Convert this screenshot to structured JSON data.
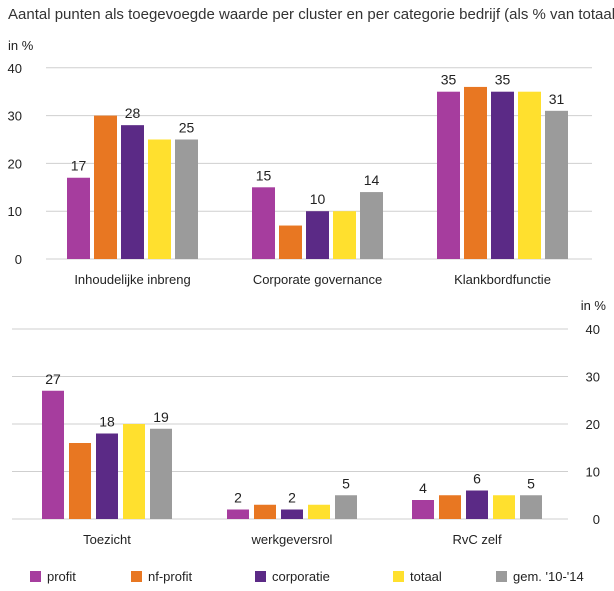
{
  "chart_data": {
    "type": "bar",
    "title": "Aantal punten als toegevoegde waarde per cluster en per categorie bedrijf (als % van totaal)",
    "ylabel": "in %",
    "ylim": [
      0,
      40
    ],
    "yticks": [
      0,
      10,
      20,
      30,
      40
    ],
    "grid": true,
    "legend_position": "bottom",
    "series": [
      {
        "name": "profit",
        "color": "#a63d9e"
      },
      {
        "name": "nf-profit",
        "color": "#e87722"
      },
      {
        "name": "corporatie",
        "color": "#5b2a86"
      },
      {
        "name": "totaal",
        "color": "#ffe02e"
      },
      {
        "name": "gem. '10-'14",
        "color": "#9b9b9b"
      }
    ],
    "panels": [
      {
        "id": "top",
        "categories": [
          "Inhoudelijke inbreng",
          "Corporate governance",
          "Klankbordfunctie"
        ],
        "values": [
          [
            17,
            30,
            28,
            25,
            25
          ],
          [
            15,
            7,
            10,
            10,
            14
          ],
          [
            35,
            36,
            35,
            35,
            31
          ]
        ],
        "labels": [
          [
            "17",
            "",
            "28",
            "",
            "25"
          ],
          [
            "15",
            "",
            "10",
            "",
            "14"
          ],
          [
            "35",
            "",
            "35",
            "",
            "31"
          ]
        ]
      },
      {
        "id": "bottom",
        "categories": [
          "Toezicht",
          "werkgeversrol",
          "RvC zelf"
        ],
        "values": [
          [
            27,
            16,
            18,
            20,
            19
          ],
          [
            2,
            3,
            2,
            3,
            5
          ],
          [
            4,
            5,
            6,
            5,
            5
          ]
        ],
        "labels": [
          [
            "27",
            "",
            "18",
            "",
            "19"
          ],
          [
            "2",
            "",
            "2",
            "",
            "5"
          ],
          [
            "4",
            "",
            "6",
            "",
            "5"
          ]
        ]
      }
    ]
  }
}
